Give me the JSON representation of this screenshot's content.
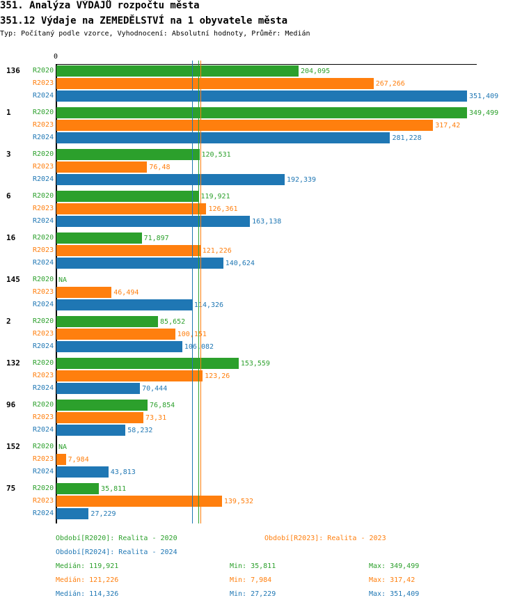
{
  "title": "351. Analýza VÝDAJŮ rozpočtu města",
  "subtitle": "351.12 Výdaje na ZEMEDĚLSTVÍ na 1 obyvatele města",
  "info": "Typ: Počítaný podle vzorce, Vyhodnocení: Absolutní hodnoty, Průměr: Medián",
  "colors": {
    "R2020": "#2ca02c",
    "R2023": "#ff7f0e",
    "R2024": "#1f77b4"
  },
  "chart_data": {
    "type": "bar",
    "orientation": "horizontal",
    "xtick": "0",
    "series_names": [
      "R2020",
      "R2023",
      "R2024"
    ],
    "groups": [
      {
        "label": "136",
        "values": [
          "204,095",
          "267,266",
          "351,409"
        ]
      },
      {
        "label": "1",
        "values": [
          "349,499",
          "317,42",
          "281,228"
        ]
      },
      {
        "label": "3",
        "values": [
          "120,531",
          "76,48",
          "192,339"
        ]
      },
      {
        "label": "6",
        "values": [
          "119,921",
          "126,361",
          "163,138"
        ]
      },
      {
        "label": "16",
        "values": [
          "71,897",
          "121,226",
          "140,624"
        ]
      },
      {
        "label": "145",
        "values": [
          "NA",
          "46,494",
          "114,326"
        ]
      },
      {
        "label": "2",
        "values": [
          "85,652",
          "100,151",
          "106,082"
        ]
      },
      {
        "label": "132",
        "values": [
          "153,559",
          "123,26",
          "70,444"
        ]
      },
      {
        "label": "96",
        "values": [
          "76,854",
          "73,31",
          "58,232"
        ]
      },
      {
        "label": "152",
        "values": [
          "NA",
          "7,984",
          "43,813"
        ]
      },
      {
        "label": "75",
        "values": [
          "35,811",
          "139,532",
          "27,229"
        ]
      }
    ],
    "medians": {
      "R2020": 119.921,
      "R2023": 121.226,
      "R2024": 114.326
    }
  },
  "legend": {
    "r2020": "Období[R2020]: Realita - 2020",
    "r2023": "Období[R2023]: Realita - 2023",
    "r2024": "Období[R2024]: Realita - 2024"
  },
  "stats": [
    {
      "median": "Medián: 119,921",
      "min": "Min: 35,811",
      "max": "Max: 349,499"
    },
    {
      "median": "Medián: 121,226",
      "min": "Min: 7,984",
      "max": "Max: 317,42"
    },
    {
      "median": "Medián: 114,326",
      "min": "Min: 27,229",
      "max": "Max: 351,409"
    }
  ]
}
